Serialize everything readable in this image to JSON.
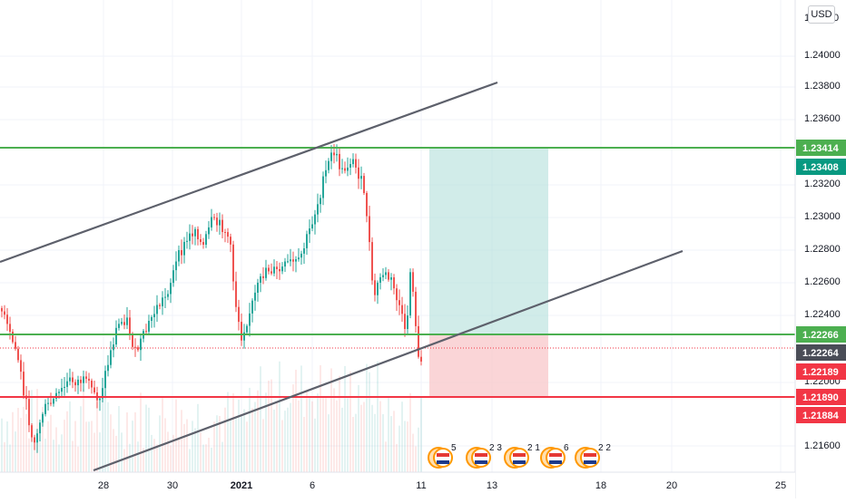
{
  "currency_label": "USD",
  "price_scale": {
    "ticks": [
      "1.24000",
      "1.23800",
      "1.23600",
      "1.23200",
      "1.23000",
      "1.22800",
      "1.22600",
      "1.22400",
      "1.21600"
    ],
    "partial_labels": {
      "top": "1.",
      "top_right": "0",
      "under_red": "1.22000"
    },
    "tags": [
      {
        "text": "1.23414",
        "bg": "#4caf50"
      },
      {
        "text": "1.23408",
        "bg": "#089981"
      },
      {
        "text": "1.22266",
        "bg": "#4caf50"
      },
      {
        "text": "1.22264",
        "bg": "#4a4d57"
      },
      {
        "text": "1.22189",
        "bg": "#f23645"
      },
      {
        "text": "1.21890",
        "bg": "#f23645"
      },
      {
        "text": "1.21884",
        "bg": "#f23645"
      }
    ]
  },
  "time_axis": {
    "labels": [
      "28",
      "30",
      "2021",
      "6",
      "11",
      "13",
      "18",
      "20",
      "25"
    ]
  },
  "events": [
    {
      "count": "5"
    },
    {
      "count": "2 3"
    },
    {
      "count": "2 1"
    },
    {
      "count": "6"
    },
    {
      "count": "2 2"
    }
  ],
  "colors": {
    "up": "#26a69a",
    "down": "#ef5350",
    "level": "#4caf50",
    "stop": "#f23645",
    "channel": "#5d606b",
    "profit_zone": "#b2dfdb",
    "loss_zone": "#f8c7c9"
  },
  "chart_data": {
    "type": "candlestick",
    "symbol_currency": "USD",
    "y_range": [
      1.2146,
      1.2432
    ],
    "horizontal_levels": [
      {
        "price": 1.23414,
        "color": "green"
      },
      {
        "price": 1.22266,
        "color": "green"
      },
      {
        "price": 1.2189,
        "color": "red"
      }
    ],
    "position_tool": {
      "entry": 1.22266,
      "target": 1.23414,
      "stop": 1.2189
    },
    "last_price": 1.22264,
    "channel": {
      "upper": "ascending",
      "lower": "ascending"
    }
  }
}
